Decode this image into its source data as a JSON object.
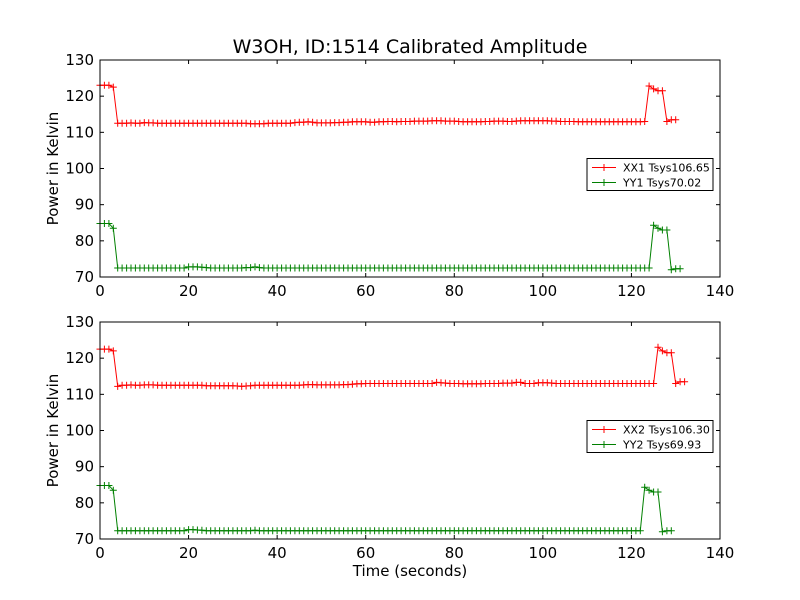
{
  "chart_data": {
    "title": "W3OH, ID:1514 Calibrated Amplitude",
    "xlabel": "Time (seconds)",
    "ylabel": "Power in Kelvin",
    "colors": {
      "XX": "#ff0000",
      "YY": "#008000"
    },
    "subplots": [
      {
        "type": "line",
        "marker": "plus",
        "xlim": [
          0,
          140
        ],
        "ylim": [
          70,
          130
        ],
        "xticks": [
          0,
          20,
          40,
          60,
          80,
          100,
          120,
          140
        ],
        "yticks": [
          70,
          80,
          90,
          100,
          110,
          120,
          130
        ],
        "show_xlabel": false,
        "legend": "center-right",
        "series": [
          {
            "name": "XX1 Tsys106.65",
            "color": "#ff0000",
            "x_start": 0,
            "x_step": 1,
            "values": [
              123,
              123,
              123,
              122.5,
              112.5,
              112.5,
              112.5,
              112.6,
              112.5,
              112.5,
              112.7,
              112.6,
              112.6,
              112.5,
              112.5,
              112.5,
              112.5,
              112.5,
              112.5,
              112.5,
              112.5,
              112.5,
              112.5,
              112.5,
              112.5,
              112.5,
              112.5,
              112.5,
              112.5,
              112.5,
              112.5,
              112.5,
              112.5,
              112.5,
              112.4,
              112.4,
              112.4,
              112.4,
              112.5,
              112.5,
              112.5,
              112.5,
              112.5,
              112.5,
              112.7,
              112.8,
              112.8,
              112.9,
              112.8,
              112.6,
              112.6,
              112.6,
              112.6,
              112.7,
              112.7,
              112.8,
              112.8,
              112.9,
              112.9,
              112.9,
              112.9,
              112.8,
              112.8,
              112.9,
              112.9,
              113,
              113,
              112.9,
              113,
              113,
              113,
              113.1,
              113.1,
              113.1,
              113.1,
              113.2,
              113.2,
              113.2,
              113.1,
              113.1,
              113.1,
              113,
              112.9,
              112.9,
              112.9,
              112.9,
              112.9,
              113,
              113,
              113.1,
              113.1,
              113.1,
              113,
              113,
              113.1,
              113.2,
              113.2,
              113.2,
              113.2,
              113.2,
              113.2,
              113.2,
              113.1,
              113.1,
              113,
              113,
              113,
              113,
              112.9,
              112.9,
              112.9,
              112.9,
              112.9,
              112.9,
              112.9,
              112.9,
              112.9,
              112.9,
              112.9,
              112.9,
              112.9,
              112.9,
              112.9,
              113,
              122.8,
              122,
              121.5,
              121.5,
              113,
              113.5,
              113.5
            ]
          },
          {
            "name": "YY1 Tsys70.02",
            "color": "#008000",
            "x_start": 0,
            "x_step": 1,
            "values": [
              84.8,
              84.8,
              84.8,
              83.5,
              72.5,
              72.5,
              72.5,
              72.5,
              72.5,
              72.5,
              72.5,
              72.5,
              72.5,
              72.5,
              72.5,
              72.5,
              72.5,
              72.5,
              72.5,
              72.5,
              72.8,
              72.8,
              72.8,
              72.7,
              72.6,
              72.5,
              72.5,
              72.5,
              72.5,
              72.5,
              72.5,
              72.5,
              72.5,
              72.6,
              72.6,
              72.8,
              72.6,
              72.5,
              72.5,
              72.5,
              72.5,
              72.5,
              72.5,
              72.5,
              72.5,
              72.5,
              72.5,
              72.5,
              72.5,
              72.5,
              72.5,
              72.5,
              72.5,
              72.5,
              72.5,
              72.5,
              72.5,
              72.5,
              72.5,
              72.5,
              72.5,
              72.5,
              72.5,
              72.5,
              72.5,
              72.5,
              72.5,
              72.5,
              72.5,
              72.5,
              72.5,
              72.5,
              72.5,
              72.5,
              72.5,
              72.5,
              72.5,
              72.5,
              72.5,
              72.5,
              72.5,
              72.5,
              72.5,
              72.5,
              72.5,
              72.5,
              72.5,
              72.5,
              72.5,
              72.5,
              72.5,
              72.5,
              72.5,
              72.5,
              72.5,
              72.5,
              72.5,
              72.5,
              72.5,
              72.5,
              72.5,
              72.5,
              72.5,
              72.5,
              72.5,
              72.5,
              72.5,
              72.5,
              72.5,
              72.5,
              72.5,
              72.5,
              72.5,
              72.5,
              72.5,
              72.5,
              72.5,
              72.5,
              72.5,
              72.5,
              72.5,
              72.5,
              72.5,
              72.5,
              72.5,
              84.3,
              83.5,
              83,
              83,
              72,
              72.3,
              72.3
            ]
          }
        ]
      },
      {
        "type": "line",
        "marker": "plus",
        "xlim": [
          0,
          140
        ],
        "ylim": [
          70,
          130
        ],
        "xticks": [
          0,
          20,
          40,
          60,
          80,
          100,
          120,
          140
        ],
        "yticks": [
          70,
          80,
          90,
          100,
          110,
          120,
          130
        ],
        "show_xlabel": true,
        "legend": "center-right",
        "series": [
          {
            "name": "XX2 Tsys106.30",
            "color": "#ff0000",
            "x_start": 0,
            "x_step": 1,
            "values": [
              122.5,
              122.5,
              122.5,
              122,
              112.2,
              112.5,
              112.5,
              112.6,
              112.5,
              112.5,
              112.6,
              112.6,
              112.6,
              112.5,
              112.5,
              112.5,
              112.5,
              112.5,
              112.5,
              112.5,
              112.5,
              112.5,
              112.5,
              112.5,
              112.4,
              112.4,
              112.4,
              112.4,
              112.4,
              112.4,
              112.4,
              112.3,
              112.2,
              112.3,
              112.4,
              112.5,
              112.5,
              112.5,
              112.5,
              112.5,
              112.5,
              112.5,
              112.5,
              112.5,
              112.5,
              112.5,
              112.6,
              112.7,
              112.7,
              112.6,
              112.6,
              112.6,
              112.6,
              112.6,
              112.6,
              112.7,
              112.7,
              112.8,
              112.9,
              112.9,
              113,
              113,
              113,
              113,
              113,
              113,
              113,
              113,
              113,
              113,
              113,
              113,
              113,
              113,
              113,
              113,
              113.3,
              113.2,
              113.1,
              113,
              113,
              113,
              112.9,
              112.9,
              112.9,
              112.9,
              112.9,
              113,
              113,
              113,
              113,
              113.1,
              113.1,
              113.1,
              113.3,
              113.3,
              113,
              113,
              113,
              113.2,
              113.2,
              113.2,
              113.1,
              113,
              113,
              113,
              113,
              113,
              113,
              113,
              113,
              113,
              113,
              113,
              113,
              113,
              113,
              113,
              113,
              113,
              113,
              113,
              113,
              113,
              113,
              113,
              123,
              122,
              121.5,
              121.5,
              113,
              113.5,
              113.5
            ]
          },
          {
            "name": "YY2 Tsys69.93",
            "color": "#008000",
            "x_start": 0,
            "x_step": 1,
            "values": [
              84.8,
              84.8,
              84.8,
              83.5,
              72.3,
              72.3,
              72.3,
              72.3,
              72.3,
              72.3,
              72.3,
              72.3,
              72.3,
              72.3,
              72.3,
              72.3,
              72.3,
              72.3,
              72.3,
              72.3,
              72.6,
              72.6,
              72.5,
              72.4,
              72.3,
              72.3,
              72.3,
              72.3,
              72.3,
              72.3,
              72.3,
              72.3,
              72.3,
              72.3,
              72.3,
              72.4,
              72.3,
              72.3,
              72.3,
              72.3,
              72.3,
              72.3,
              72.3,
              72.3,
              72.3,
              72.3,
              72.3,
              72.3,
              72.3,
              72.3,
              72.3,
              72.3,
              72.3,
              72.3,
              72.3,
              72.3,
              72.3,
              72.3,
              72.3,
              72.3,
              72.3,
              72.3,
              72.3,
              72.3,
              72.3,
              72.3,
              72.3,
              72.3,
              72.3,
              72.3,
              72.3,
              72.3,
              72.3,
              72.3,
              72.3,
              72.3,
              72.3,
              72.3,
              72.3,
              72.3,
              72.3,
              72.3,
              72.3,
              72.3,
              72.3,
              72.3,
              72.3,
              72.3,
              72.3,
              72.3,
              72.3,
              72.3,
              72.3,
              72.3,
              72.3,
              72.3,
              72.3,
              72.3,
              72.3,
              72.3,
              72.3,
              72.3,
              72.3,
              72.3,
              72.3,
              72.3,
              72.3,
              72.3,
              72.3,
              72.3,
              72.3,
              72.3,
              72.3,
              72.3,
              72.3,
              72.3,
              72.3,
              72.3,
              72.3,
              72.3,
              72.3,
              72.3,
              72.3,
              84.3,
              83.5,
              83,
              83,
              72,
              72.3,
              72.3
            ]
          }
        ]
      }
    ]
  }
}
